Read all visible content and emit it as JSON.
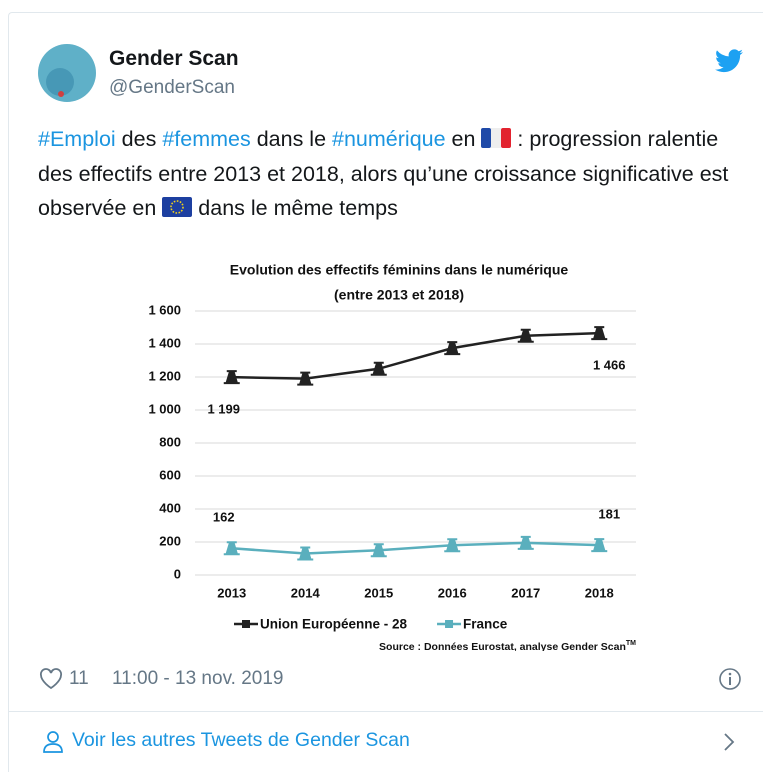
{
  "tweet": {
    "author": {
      "name": "Gender Scan",
      "handle": "@GenderScan"
    },
    "text": [
      "#Emploi",
      " des ",
      "#femmes",
      " dans le ",
      "#numérique",
      " en ",
      " : progression ralentie des effectifs entre 2013 et 2018, alors qu’une croissance significative est observée en ",
      " dans le même temps"
    ],
    "likes": "11",
    "timestamp": "11:00 - 13 nov. 2019",
    "more_link": "Voir les autres Tweets de Gender Scan"
  },
  "chart_data": {
    "type": "line",
    "title": [
      "Evolution des effectifs féminins dans le numérique",
      "(entre 2013 et 2018)"
    ],
    "categories": [
      "2013",
      "2014",
      "2015",
      "2016",
      "2017",
      "2018"
    ],
    "series": [
      {
        "name": "Union Européenne - 28",
        "color": "#222222",
        "values": [
          1199,
          1190,
          1250,
          1375,
          1450,
          1466
        ],
        "value_labels": [
          "1 199",
          null,
          null,
          null,
          null,
          "1 466"
        ]
      },
      {
        "name": "France",
        "color": "#5aafbd",
        "values": [
          162,
          130,
          150,
          180,
          195,
          181
        ],
        "value_labels": [
          "162",
          null,
          null,
          null,
          null,
          "181"
        ]
      }
    ],
    "ylim": [
      0,
      1600
    ],
    "yticks": [
      0,
      200,
      400,
      600,
      800,
      {
        "value": 1000,
        "label": "1 000"
      },
      {
        "value": 1200,
        "label": "1 200"
      },
      {
        "value": 1400,
        "label": "1 400"
      },
      {
        "value": 1600,
        "label": "1 600"
      }
    ],
    "grid": true,
    "legend": "bottom",
    "source": "Source : Données Eurostat, analyse Gender Scan",
    "source_mark": "TM"
  }
}
